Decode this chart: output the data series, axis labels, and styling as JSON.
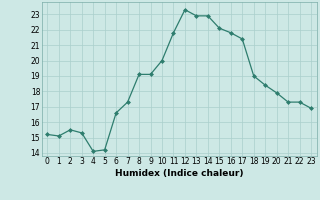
{
  "x": [
    0,
    1,
    2,
    3,
    4,
    5,
    6,
    7,
    8,
    9,
    10,
    11,
    12,
    13,
    14,
    15,
    16,
    17,
    18,
    19,
    20,
    21,
    22,
    23
  ],
  "y": [
    15.2,
    15.1,
    15.5,
    15.3,
    14.1,
    14.2,
    16.6,
    17.3,
    19.1,
    19.1,
    20.0,
    21.8,
    23.3,
    22.9,
    22.9,
    22.1,
    21.8,
    21.4,
    19.0,
    18.4,
    17.9,
    17.3,
    17.3,
    16.9
  ],
  "line_color": "#2e7d6e",
  "marker": "D",
  "marker_size": 2.0,
  "bg_color": "#cde8e5",
  "grid_color": "#aacfcc",
  "xlabel": "Humidex (Indice chaleur)",
  "xlim": [
    -0.5,
    23.5
  ],
  "ylim": [
    13.8,
    23.8
  ],
  "yticks": [
    14,
    15,
    16,
    17,
    18,
    19,
    20,
    21,
    22,
    23
  ],
  "xticks": [
    0,
    1,
    2,
    3,
    4,
    5,
    6,
    7,
    8,
    9,
    10,
    11,
    12,
    13,
    14,
    15,
    16,
    17,
    18,
    19,
    20,
    21,
    22,
    23
  ],
  "tick_fontsize": 5.5,
  "label_fontsize": 6.5
}
